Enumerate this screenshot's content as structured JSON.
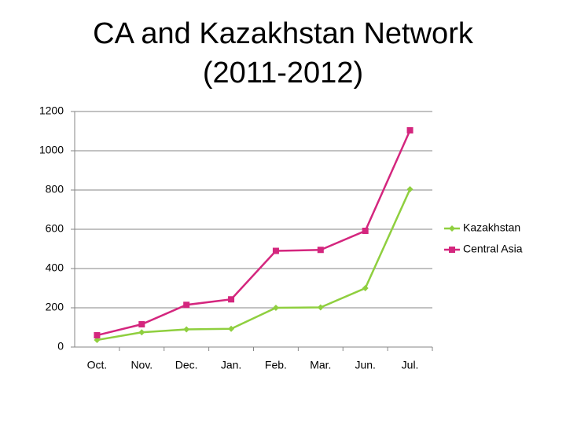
{
  "chart_data": {
    "type": "line",
    "title": "CA and Kazakhstan Network (2011-2012)",
    "categories": [
      "Oct.",
      "Nov.",
      "Dec.",
      "Jan.",
      "Feb.",
      "Mar.",
      "Jun.",
      "Jul."
    ],
    "series": [
      {
        "name": "Kazakhstan",
        "color": "#8fcf3f",
        "marker": "diamond",
        "values": [
          36,
          75,
          90,
          93,
          200,
          202,
          300,
          804
        ]
      },
      {
        "name": "Central Asia",
        "color": "#d4267e",
        "marker": "square",
        "values": [
          60,
          116,
          215,
          243,
          490,
          495,
          592,
          1104
        ]
      }
    ],
    "ylim": [
      0,
      1200
    ],
    "yticks": [
      0,
      200,
      400,
      600,
      800,
      1000,
      1200
    ],
    "grid": true,
    "legend": "right"
  }
}
